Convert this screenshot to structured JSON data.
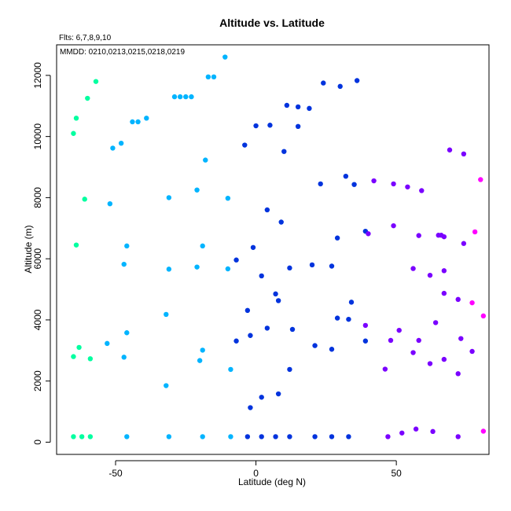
{
  "chart_data": {
    "type": "scatter",
    "title": "Altitude vs. Latitude",
    "subtitle": "Flts: 6,7,8,9,10",
    "annotation": "MMDD: 0210,0213,0215,0218,0219",
    "xlabel": "Latitude (deg N)",
    "ylabel": "Altitude (m)",
    "xlim": [
      -71,
      83
    ],
    "ylim": [
      -400,
      13000
    ],
    "xticks": [
      -50,
      0,
      50
    ],
    "yticks": [
      0,
      2000,
      4000,
      6000,
      8000,
      10000,
      12000
    ],
    "grid": false,
    "colors": {
      "spring": "#00ffa0",
      "sky": "#00b4ff",
      "blue": "#0033dd",
      "violet": "#7a00ff",
      "magenta": "#ff00ff"
    },
    "points": [
      {
        "x": -65,
        "y": 10100,
        "c": "spring"
      },
      {
        "x": -64,
        "y": 10600,
        "c": "spring"
      },
      {
        "x": -60,
        "y": 11250,
        "c": "spring"
      },
      {
        "x": -57,
        "y": 11800,
        "c": "spring"
      },
      {
        "x": -61,
        "y": 7950,
        "c": "spring"
      },
      {
        "x": -64,
        "y": 6450,
        "c": "spring"
      },
      {
        "x": -63,
        "y": 3100,
        "c": "spring"
      },
      {
        "x": -65,
        "y": 2800,
        "c": "spring"
      },
      {
        "x": -59,
        "y": 2730,
        "c": "spring"
      },
      {
        "x": -65,
        "y": 180,
        "c": "spring"
      },
      {
        "x": -62,
        "y": 180,
        "c": "spring"
      },
      {
        "x": -59,
        "y": 180,
        "c": "spring"
      },
      {
        "x": -11,
        "y": 12600,
        "c": "sky"
      },
      {
        "x": -17,
        "y": 11950,
        "c": "sky"
      },
      {
        "x": -15,
        "y": 11950,
        "c": "sky"
      },
      {
        "x": -29,
        "y": 11300,
        "c": "sky"
      },
      {
        "x": -27,
        "y": 11300,
        "c": "sky"
      },
      {
        "x": -25,
        "y": 11300,
        "c": "sky"
      },
      {
        "x": -23,
        "y": 11300,
        "c": "sky"
      },
      {
        "x": -39,
        "y": 10600,
        "c": "sky"
      },
      {
        "x": -44,
        "y": 10480,
        "c": "sky"
      },
      {
        "x": -42,
        "y": 10480,
        "c": "sky"
      },
      {
        "x": -48,
        "y": 9780,
        "c": "sky"
      },
      {
        "x": -51,
        "y": 9620,
        "c": "sky"
      },
      {
        "x": -18,
        "y": 9230,
        "c": "sky"
      },
      {
        "x": -21,
        "y": 8250,
        "c": "sky"
      },
      {
        "x": -31,
        "y": 8000,
        "c": "sky"
      },
      {
        "x": -10,
        "y": 7980,
        "c": "sky"
      },
      {
        "x": -52,
        "y": 7800,
        "c": "sky"
      },
      {
        "x": -46,
        "y": 6420,
        "c": "sky"
      },
      {
        "x": -19,
        "y": 6420,
        "c": "sky"
      },
      {
        "x": -47,
        "y": 5820,
        "c": "sky"
      },
      {
        "x": -21,
        "y": 5730,
        "c": "sky"
      },
      {
        "x": -31,
        "y": 5660,
        "c": "sky"
      },
      {
        "x": -10,
        "y": 5670,
        "c": "sky"
      },
      {
        "x": -32,
        "y": 4180,
        "c": "sky"
      },
      {
        "x": -46,
        "y": 3580,
        "c": "sky"
      },
      {
        "x": -53,
        "y": 3230,
        "c": "sky"
      },
      {
        "x": -19,
        "y": 3010,
        "c": "sky"
      },
      {
        "x": -47,
        "y": 2780,
        "c": "sky"
      },
      {
        "x": -20,
        "y": 2670,
        "c": "sky"
      },
      {
        "x": -9,
        "y": 2380,
        "c": "sky"
      },
      {
        "x": -32,
        "y": 1850,
        "c": "sky"
      },
      {
        "x": -46,
        "y": 180,
        "c": "sky"
      },
      {
        "x": -31,
        "y": 180,
        "c": "sky"
      },
      {
        "x": -19,
        "y": 180,
        "c": "sky"
      },
      {
        "x": -9,
        "y": 180,
        "c": "sky"
      },
      {
        "x": 24,
        "y": 11750,
        "c": "blue"
      },
      {
        "x": 36,
        "y": 11830,
        "c": "blue"
      },
      {
        "x": 30,
        "y": 11640,
        "c": "blue"
      },
      {
        "x": 11,
        "y": 11020,
        "c": "blue"
      },
      {
        "x": 15,
        "y": 10970,
        "c": "blue"
      },
      {
        "x": 19,
        "y": 10920,
        "c": "blue"
      },
      {
        "x": 0,
        "y": 10350,
        "c": "blue"
      },
      {
        "x": 5,
        "y": 10370,
        "c": "blue"
      },
      {
        "x": 15,
        "y": 10330,
        "c": "blue"
      },
      {
        "x": -4,
        "y": 9720,
        "c": "blue"
      },
      {
        "x": 10,
        "y": 9510,
        "c": "blue"
      },
      {
        "x": 32,
        "y": 8700,
        "c": "blue"
      },
      {
        "x": 23,
        "y": 8450,
        "c": "blue"
      },
      {
        "x": 35,
        "y": 8430,
        "c": "blue"
      },
      {
        "x": 4,
        "y": 7600,
        "c": "blue"
      },
      {
        "x": 9,
        "y": 7200,
        "c": "blue"
      },
      {
        "x": 39,
        "y": 6900,
        "c": "blue"
      },
      {
        "x": 29,
        "y": 6680,
        "c": "blue"
      },
      {
        "x": -1,
        "y": 6370,
        "c": "blue"
      },
      {
        "x": -7,
        "y": 5960,
        "c": "blue"
      },
      {
        "x": 20,
        "y": 5800,
        "c": "blue"
      },
      {
        "x": 27,
        "y": 5760,
        "c": "blue"
      },
      {
        "x": 12,
        "y": 5700,
        "c": "blue"
      },
      {
        "x": 2,
        "y": 5440,
        "c": "blue"
      },
      {
        "x": 7,
        "y": 4850,
        "c": "blue"
      },
      {
        "x": 8,
        "y": 4630,
        "c": "blue"
      },
      {
        "x": 34,
        "y": 4580,
        "c": "blue"
      },
      {
        "x": -3,
        "y": 4310,
        "c": "blue"
      },
      {
        "x": 29,
        "y": 4060,
        "c": "blue"
      },
      {
        "x": 33,
        "y": 4020,
        "c": "blue"
      },
      {
        "x": 4,
        "y": 3730,
        "c": "blue"
      },
      {
        "x": 13,
        "y": 3690,
        "c": "blue"
      },
      {
        "x": -2,
        "y": 3490,
        "c": "blue"
      },
      {
        "x": -7,
        "y": 3310,
        "c": "blue"
      },
      {
        "x": 39,
        "y": 3310,
        "c": "blue"
      },
      {
        "x": 21,
        "y": 3160,
        "c": "blue"
      },
      {
        "x": 27,
        "y": 3040,
        "c": "blue"
      },
      {
        "x": 12,
        "y": 2380,
        "c": "blue"
      },
      {
        "x": 8,
        "y": 1580,
        "c": "blue"
      },
      {
        "x": 2,
        "y": 1470,
        "c": "blue"
      },
      {
        "x": -2,
        "y": 1130,
        "c": "blue"
      },
      {
        "x": -3,
        "y": 180,
        "c": "blue"
      },
      {
        "x": 2,
        "y": 180,
        "c": "blue"
      },
      {
        "x": 7,
        "y": 180,
        "c": "blue"
      },
      {
        "x": 12,
        "y": 180,
        "c": "blue"
      },
      {
        "x": 21,
        "y": 180,
        "c": "blue"
      },
      {
        "x": 27,
        "y": 180,
        "c": "blue"
      },
      {
        "x": 33,
        "y": 180,
        "c": "blue"
      },
      {
        "x": 69,
        "y": 9560,
        "c": "violet"
      },
      {
        "x": 74,
        "y": 9430,
        "c": "violet"
      },
      {
        "x": 42,
        "y": 8550,
        "c": "violet"
      },
      {
        "x": 49,
        "y": 8450,
        "c": "violet"
      },
      {
        "x": 54,
        "y": 8350,
        "c": "violet"
      },
      {
        "x": 59,
        "y": 8230,
        "c": "violet"
      },
      {
        "x": 49,
        "y": 7080,
        "c": "violet"
      },
      {
        "x": 40,
        "y": 6820,
        "c": "violet"
      },
      {
        "x": 58,
        "y": 6760,
        "c": "violet"
      },
      {
        "x": 65,
        "y": 6770,
        "c": "violet"
      },
      {
        "x": 66,
        "y": 6770,
        "c": "violet"
      },
      {
        "x": 67,
        "y": 6720,
        "c": "violet"
      },
      {
        "x": 74,
        "y": 6500,
        "c": "violet"
      },
      {
        "x": 56,
        "y": 5680,
        "c": "violet"
      },
      {
        "x": 67,
        "y": 5610,
        "c": "violet"
      },
      {
        "x": 62,
        "y": 5460,
        "c": "violet"
      },
      {
        "x": 67,
        "y": 4870,
        "c": "violet"
      },
      {
        "x": 72,
        "y": 4670,
        "c": "violet"
      },
      {
        "x": 64,
        "y": 3910,
        "c": "violet"
      },
      {
        "x": 39,
        "y": 3820,
        "c": "violet"
      },
      {
        "x": 51,
        "y": 3660,
        "c": "violet"
      },
      {
        "x": 73,
        "y": 3390,
        "c": "violet"
      },
      {
        "x": 48,
        "y": 3330,
        "c": "violet"
      },
      {
        "x": 58,
        "y": 3330,
        "c": "violet"
      },
      {
        "x": 77,
        "y": 2970,
        "c": "violet"
      },
      {
        "x": 56,
        "y": 2930,
        "c": "violet"
      },
      {
        "x": 67,
        "y": 2710,
        "c": "violet"
      },
      {
        "x": 62,
        "y": 2570,
        "c": "violet"
      },
      {
        "x": 46,
        "y": 2390,
        "c": "violet"
      },
      {
        "x": 72,
        "y": 2240,
        "c": "violet"
      },
      {
        "x": 57,
        "y": 430,
        "c": "violet"
      },
      {
        "x": 63,
        "y": 350,
        "c": "violet"
      },
      {
        "x": 52,
        "y": 300,
        "c": "violet"
      },
      {
        "x": 47,
        "y": 180,
        "c": "violet"
      },
      {
        "x": 72,
        "y": 180,
        "c": "violet"
      },
      {
        "x": 80,
        "y": 8590,
        "c": "magenta"
      },
      {
        "x": 78,
        "y": 6880,
        "c": "magenta"
      },
      {
        "x": 77,
        "y": 4560,
        "c": "magenta"
      },
      {
        "x": 81,
        "y": 4130,
        "c": "magenta"
      },
      {
        "x": 81,
        "y": 360,
        "c": "magenta"
      }
    ]
  }
}
